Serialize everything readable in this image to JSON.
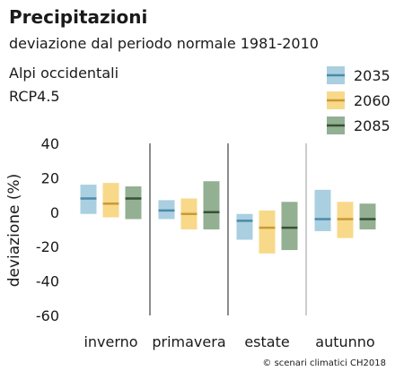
{
  "chart_data": {
    "type": "box",
    "title": "Precipitazioni",
    "subtitle": "deviazione dal periodo normale 1981-2010",
    "region": "Alpi occidentali",
    "scenario": "RCP4.5",
    "ylabel": "deviazione (%)",
    "ylim": [
      -60,
      40
    ],
    "yticks": [
      -60,
      -40,
      -20,
      0,
      20,
      40
    ],
    "yticklabels": [
      "-60",
      "-40",
      "-20",
      "0",
      "20",
      "40"
    ],
    "categories": [
      "inverno",
      "primavera",
      "estate",
      "autunno"
    ],
    "series": [
      {
        "name": "2035",
        "color": "#a9cfe1",
        "median_color": "#4d8aa8",
        "low": [
          -1,
          -4,
          -16,
          -11
        ],
        "median": [
          8,
          1,
          -5,
          -4
        ],
        "high": [
          16,
          7,
          -1,
          13
        ]
      },
      {
        "name": "2060",
        "color": "#f8d98a",
        "median_color": "#c99a36",
        "low": [
          -3,
          -10,
          -24,
          -15
        ],
        "median": [
          5,
          -1,
          -9,
          -4
        ],
        "high": [
          17,
          8,
          1,
          6
        ]
      },
      {
        "name": "2085",
        "color": "#93b092",
        "median_color": "#3b4f35",
        "low": [
          -4,
          -10,
          -22,
          -10
        ],
        "median": [
          8,
          0,
          -9,
          -4
        ],
        "high": [
          15,
          18,
          6,
          5
        ]
      }
    ],
    "legend_position": "top-right",
    "grid": false,
    "source": "© scenari climatici CH2018"
  }
}
